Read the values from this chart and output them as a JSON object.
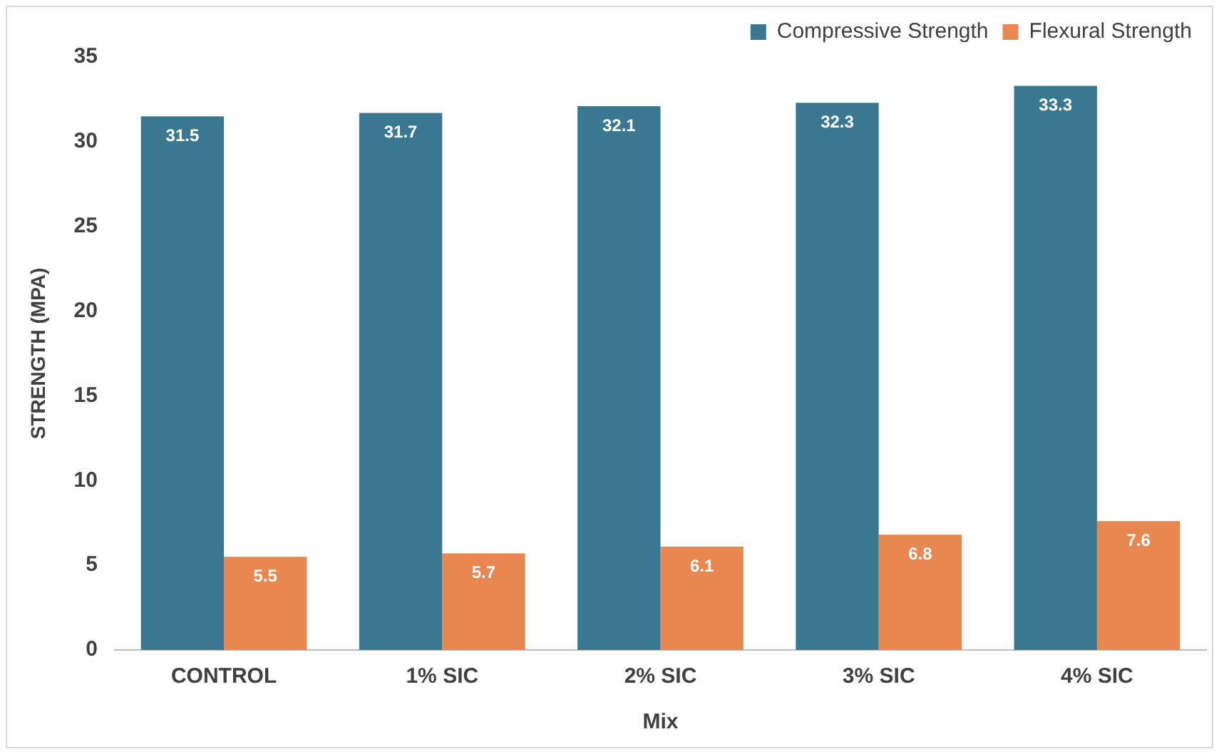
{
  "chart_data": {
    "type": "bar",
    "xlabel": "Mix",
    "ylabel": "STRENGTH (MPA)",
    "categories": [
      "CONTROL",
      "1% SIC",
      "2% SIC",
      "3% SIC",
      "4% SIC"
    ],
    "series": [
      {
        "name": "Compressive Strength",
        "color": "#3a7791",
        "values": [
          31.5,
          31.7,
          32.1,
          32.3,
          33.3
        ]
      },
      {
        "name": "Flexural Strength",
        "color": "#e8874f",
        "values": [
          5.5,
          5.7,
          6.1,
          6.8,
          7.6
        ]
      }
    ],
    "ylim": [
      0,
      35
    ],
    "yticks": [
      0,
      5,
      10,
      15,
      20,
      25,
      30,
      35
    ],
    "grid": false,
    "legend": "top right",
    "data_labels": true
  }
}
